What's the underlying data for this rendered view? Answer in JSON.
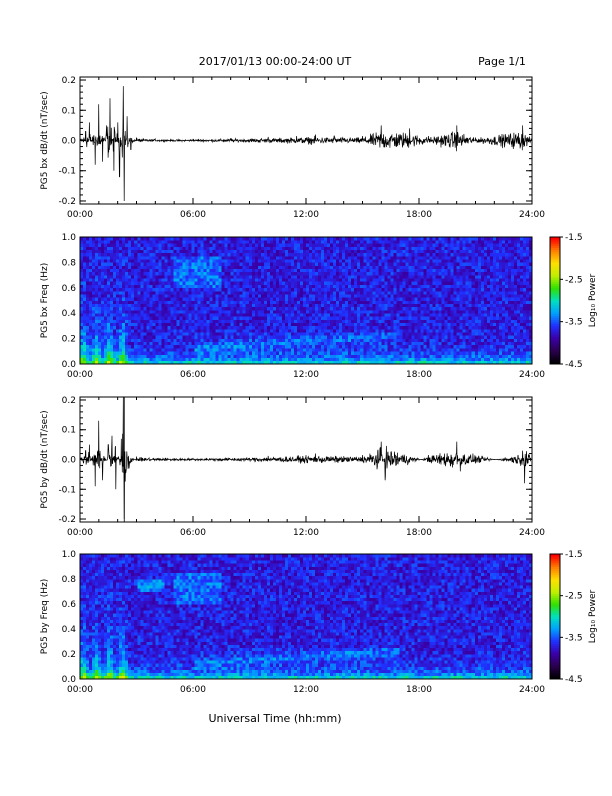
{
  "header": {
    "title": "2017/01/13  00:00-24:00 UT",
    "page_label": "Page 1/1"
  },
  "footer": {
    "xlabel": "Universal Time (hh:mm)"
  },
  "colorbar": {
    "label": "Log₁₀ Power",
    "range": [
      -4.5,
      -1.5
    ],
    "ticks": [
      "-1.5",
      "-2.5",
      "-3.5",
      "-4.5"
    ],
    "colors": [
      "#000000",
      "#2a0050",
      "#3a00a8",
      "#2030ff",
      "#00a0ff",
      "#00e0c0",
      "#30e000",
      "#c0f000",
      "#ffe000",
      "#ff8000",
      "#ff0000"
    ]
  },
  "chart_data": [
    {
      "type": "line",
      "ylabel": "PG5 bx dB/dt (nT/sec)",
      "x_ticks": [
        "00:00",
        "06:00",
        "12:00",
        "18:00",
        "24:00"
      ],
      "y_ticks": [
        "0.2",
        "0.1",
        "0.0",
        "-0.1",
        "-0.2"
      ],
      "xlim": [
        0,
        24
      ],
      "ylim": [
        -0.21,
        0.21
      ],
      "series": [
        {
          "values": [
            [
              0.0,
              0.01
            ],
            [
              0.3,
              0.03
            ],
            [
              0.5,
              0.06
            ],
            [
              0.8,
              -0.08
            ],
            [
              1.0,
              0.12
            ],
            [
              1.2,
              -0.07
            ],
            [
              1.4,
              0.05
            ],
            [
              1.6,
              0.14
            ],
            [
              1.8,
              -0.1
            ],
            [
              2.0,
              0.06
            ],
            [
              2.1,
              -0.12
            ],
            [
              2.3,
              0.18
            ],
            [
              2.35,
              -0.2
            ],
            [
              2.5,
              0.08
            ],
            [
              2.7,
              -0.03
            ],
            [
              3.0,
              0.01
            ],
            [
              4.0,
              0.005
            ],
            [
              6.0,
              0.005
            ],
            [
              8.0,
              0.008
            ],
            [
              10.0,
              0.012
            ],
            [
              11.5,
              0.015
            ],
            [
              12.5,
              0.02
            ],
            [
              13.5,
              0.015
            ],
            [
              15.0,
              0.015
            ],
            [
              16.0,
              0.05
            ],
            [
              17.5,
              0.04
            ],
            [
              18.5,
              0.015
            ],
            [
              20.0,
              0.05
            ],
            [
              21.0,
              0.01
            ],
            [
              23.5,
              0.05
            ],
            [
              24.0,
              0.005
            ]
          ]
        }
      ]
    },
    {
      "type": "heatmap",
      "ylabel": "PG5 bx Freq (Hz)",
      "x_ticks": [
        "00:00",
        "06:00",
        "12:00",
        "18:00",
        "24:00"
      ],
      "y_ticks": [
        "1.0",
        "0.8",
        "0.6",
        "0.4",
        "0.2",
        "0.0"
      ],
      "xlim": [
        0,
        24
      ],
      "ylim": [
        0,
        1.0
      ],
      "zlim": [
        -4.5,
        -1.5
      ]
    },
    {
      "type": "line",
      "ylabel": "PG5 by dB/dt (nT/sec)",
      "x_ticks": [
        "00:00",
        "06:00",
        "12:00",
        "18:00",
        "24:00"
      ],
      "y_ticks": [
        "0.2",
        "0.1",
        "0.0",
        "-0.1",
        "-0.2"
      ],
      "xlim": [
        0,
        24
      ],
      "ylim": [
        -0.21,
        0.21
      ],
      "series": [
        {
          "values": [
            [
              0.0,
              0.01
            ],
            [
              0.3,
              0.03
            ],
            [
              0.5,
              0.05
            ],
            [
              0.8,
              -0.09
            ],
            [
              1.0,
              0.13
            ],
            [
              1.2,
              -0.07
            ],
            [
              1.5,
              0.05
            ],
            [
              1.7,
              0.08
            ],
            [
              1.9,
              -0.1
            ],
            [
              2.2,
              0.07
            ],
            [
              2.3,
              0.21
            ],
            [
              2.35,
              -0.2
            ],
            [
              2.6,
              -0.03
            ],
            [
              3.0,
              0.01
            ],
            [
              6.0,
              0.005
            ],
            [
              10.0,
              0.012
            ],
            [
              12.5,
              0.02
            ],
            [
              15.0,
              0.015
            ],
            [
              16.0,
              0.06
            ],
            [
              16.2,
              -0.07
            ],
            [
              18.5,
              0.015
            ],
            [
              20.0,
              0.06
            ],
            [
              20.2,
              -0.04
            ],
            [
              23.5,
              0.03
            ],
            [
              23.6,
              -0.08
            ],
            [
              24.0,
              0.005
            ]
          ]
        }
      ]
    },
    {
      "type": "heatmap",
      "ylabel": "PG5 by Freq (Hz)",
      "x_ticks": [
        "00:00",
        "06:00",
        "12:00",
        "18:00",
        "24:00"
      ],
      "y_ticks": [
        "1.0",
        "0.8",
        "0.6",
        "0.4",
        "0.2",
        "0.0"
      ],
      "xlim": [
        0,
        24
      ],
      "ylim": [
        0,
        1.0
      ],
      "zlim": [
        -4.5,
        -1.5
      ]
    }
  ]
}
